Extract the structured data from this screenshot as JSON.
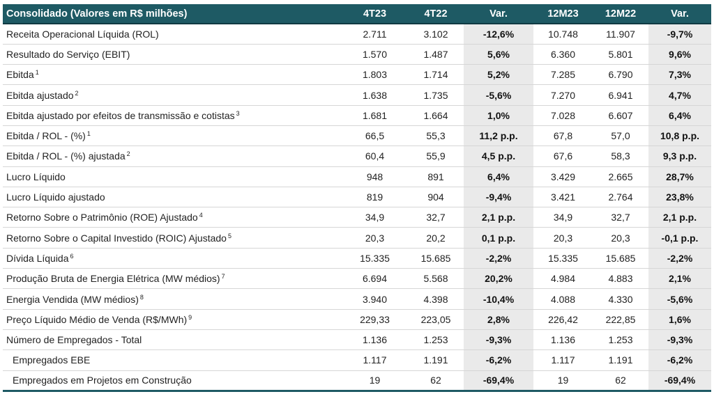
{
  "table": {
    "header": [
      "Consolidado (Valores em R$ milhões)",
      "4T23",
      "4T22",
      "Var.",
      "12M23",
      "12M22",
      "Var."
    ],
    "rows": [
      {
        "label": "Receita Operacional Líquida (ROL)",
        "note": "",
        "sub": false,
        "v4T23": "2.711",
        "v4T22": "3.102",
        "var4T": "-12,6%",
        "v12M23": "10.748",
        "v12M22": "11.907",
        "var12M": "-9,7%"
      },
      {
        "label": "Resultado do Serviço (EBIT)",
        "note": "",
        "sub": false,
        "v4T23": "1.570",
        "v4T22": "1.487",
        "var4T": "5,6%",
        "v12M23": "6.360",
        "v12M22": "5.801",
        "var12M": "9,6%"
      },
      {
        "label": "Ebitda",
        "note": "1",
        "sub": false,
        "v4T23": "1.803",
        "v4T22": "1.714",
        "var4T": "5,2%",
        "v12M23": "7.285",
        "v12M22": "6.790",
        "var12M": "7,3%"
      },
      {
        "label": "Ebitda ajustado",
        "note": "2",
        "sub": false,
        "v4T23": "1.638",
        "v4T22": "1.735",
        "var4T": "-5,6%",
        "v12M23": "7.270",
        "v12M22": "6.941",
        "var12M": "4,7%"
      },
      {
        "label": "Ebitda ajustado por efeitos de transmissão e cotistas",
        "note": "3",
        "sub": false,
        "v4T23": "1.681",
        "v4T22": "1.664",
        "var4T": "1,0%",
        "v12M23": "7.028",
        "v12M22": "6.607",
        "var12M": "6,4%"
      },
      {
        "label": "Ebitda / ROL - (%)",
        "note": "1",
        "sub": false,
        "v4T23": "66,5",
        "v4T22": "55,3",
        "var4T": "11,2 p.p.",
        "v12M23": "67,8",
        "v12M22": "57,0",
        "var12M": "10,8 p.p."
      },
      {
        "label": "Ebitda / ROL - (%) ajustada",
        "note": "2",
        "sub": false,
        "v4T23": "60,4",
        "v4T22": "55,9",
        "var4T": "4,5 p.p.",
        "v12M23": "67,6",
        "v12M22": "58,3",
        "var12M": "9,3 p.p."
      },
      {
        "label": "Lucro Líquido",
        "note": "",
        "sub": false,
        "v4T23": "948",
        "v4T22": "891",
        "var4T": "6,4%",
        "v12M23": "3.429",
        "v12M22": "2.665",
        "var12M": "28,7%"
      },
      {
        "label": "Lucro Líquido ajustado",
        "note": "",
        "sub": false,
        "v4T23": "819",
        "v4T22": "904",
        "var4T": "-9,4%",
        "v12M23": "3.421",
        "v12M22": "2.764",
        "var12M": "23,8%"
      },
      {
        "label": "Retorno Sobre o Patrimônio (ROE) Ajustado",
        "note": "4",
        "sub": false,
        "v4T23": "34,9",
        "v4T22": "32,7",
        "var4T": "2,1 p.p.",
        "v12M23": "34,9",
        "v12M22": "32,7",
        "var12M": "2,1 p.p."
      },
      {
        "label": "Retorno Sobre o Capital Investido (ROIC) Ajustado",
        "note": "5",
        "sub": false,
        "v4T23": "20,3",
        "v4T22": "20,2",
        "var4T": "0,1 p.p.",
        "v12M23": "20,3",
        "v12M22": "20,3",
        "var12M": "-0,1 p.p."
      },
      {
        "label": "Dívida Líquida",
        "note": "6",
        "sub": false,
        "v4T23": "15.335",
        "v4T22": "15.685",
        "var4T": "-2,2%",
        "v12M23": "15.335",
        "v12M22": "15.685",
        "var12M": "-2,2%"
      },
      {
        "label": "Produção Bruta de Energia Elétrica (MW médios)",
        "note": "7",
        "sub": false,
        "v4T23": "6.694",
        "v4T22": "5.568",
        "var4T": "20,2%",
        "v12M23": "4.984",
        "v12M22": "4.883",
        "var12M": "2,1%"
      },
      {
        "label": "Energia Vendida (MW médios)",
        "note": "8",
        "sub": false,
        "v4T23": "3.940",
        "v4T22": "4.398",
        "var4T": "-10,4%",
        "v12M23": "4.088",
        "v12M22": "4.330",
        "var12M": "-5,6%"
      },
      {
        "label": "Preço Líquido Médio de Venda (R$/MWh)",
        "note": "9",
        "sub": false,
        "v4T23": "229,33",
        "v4T22": "223,05",
        "var4T": "2,8%",
        "v12M23": "226,42",
        "v12M22": "222,85",
        "var12M": "1,6%"
      },
      {
        "label": "Número de Empregados - Total",
        "note": "",
        "sub": false,
        "v4T23": "1.136",
        "v4T22": "1.253",
        "var4T": "-9,3%",
        "v12M23": "1.136",
        "v12M22": "1.253",
        "var12M": "-9,3%"
      },
      {
        "label": "Empregados EBE",
        "note": "",
        "sub": true,
        "v4T23": "1.117",
        "v4T22": "1.191",
        "var4T": "-6,2%",
        "v12M23": "1.117",
        "v12M22": "1.191",
        "var12M": "-6,2%"
      },
      {
        "label": "Empregados em Projetos em Construção",
        "note": "",
        "sub": true,
        "v4T23": "19",
        "v4T22": "62",
        "var4T": "-69,4%",
        "v12M23": "19",
        "v12M22": "62",
        "var12M": "-69,4%"
      }
    ]
  },
  "colors": {
    "header_bg": "#1e5a64",
    "header_text": "#ffffff",
    "var_column_bg": "#eaeaea"
  }
}
